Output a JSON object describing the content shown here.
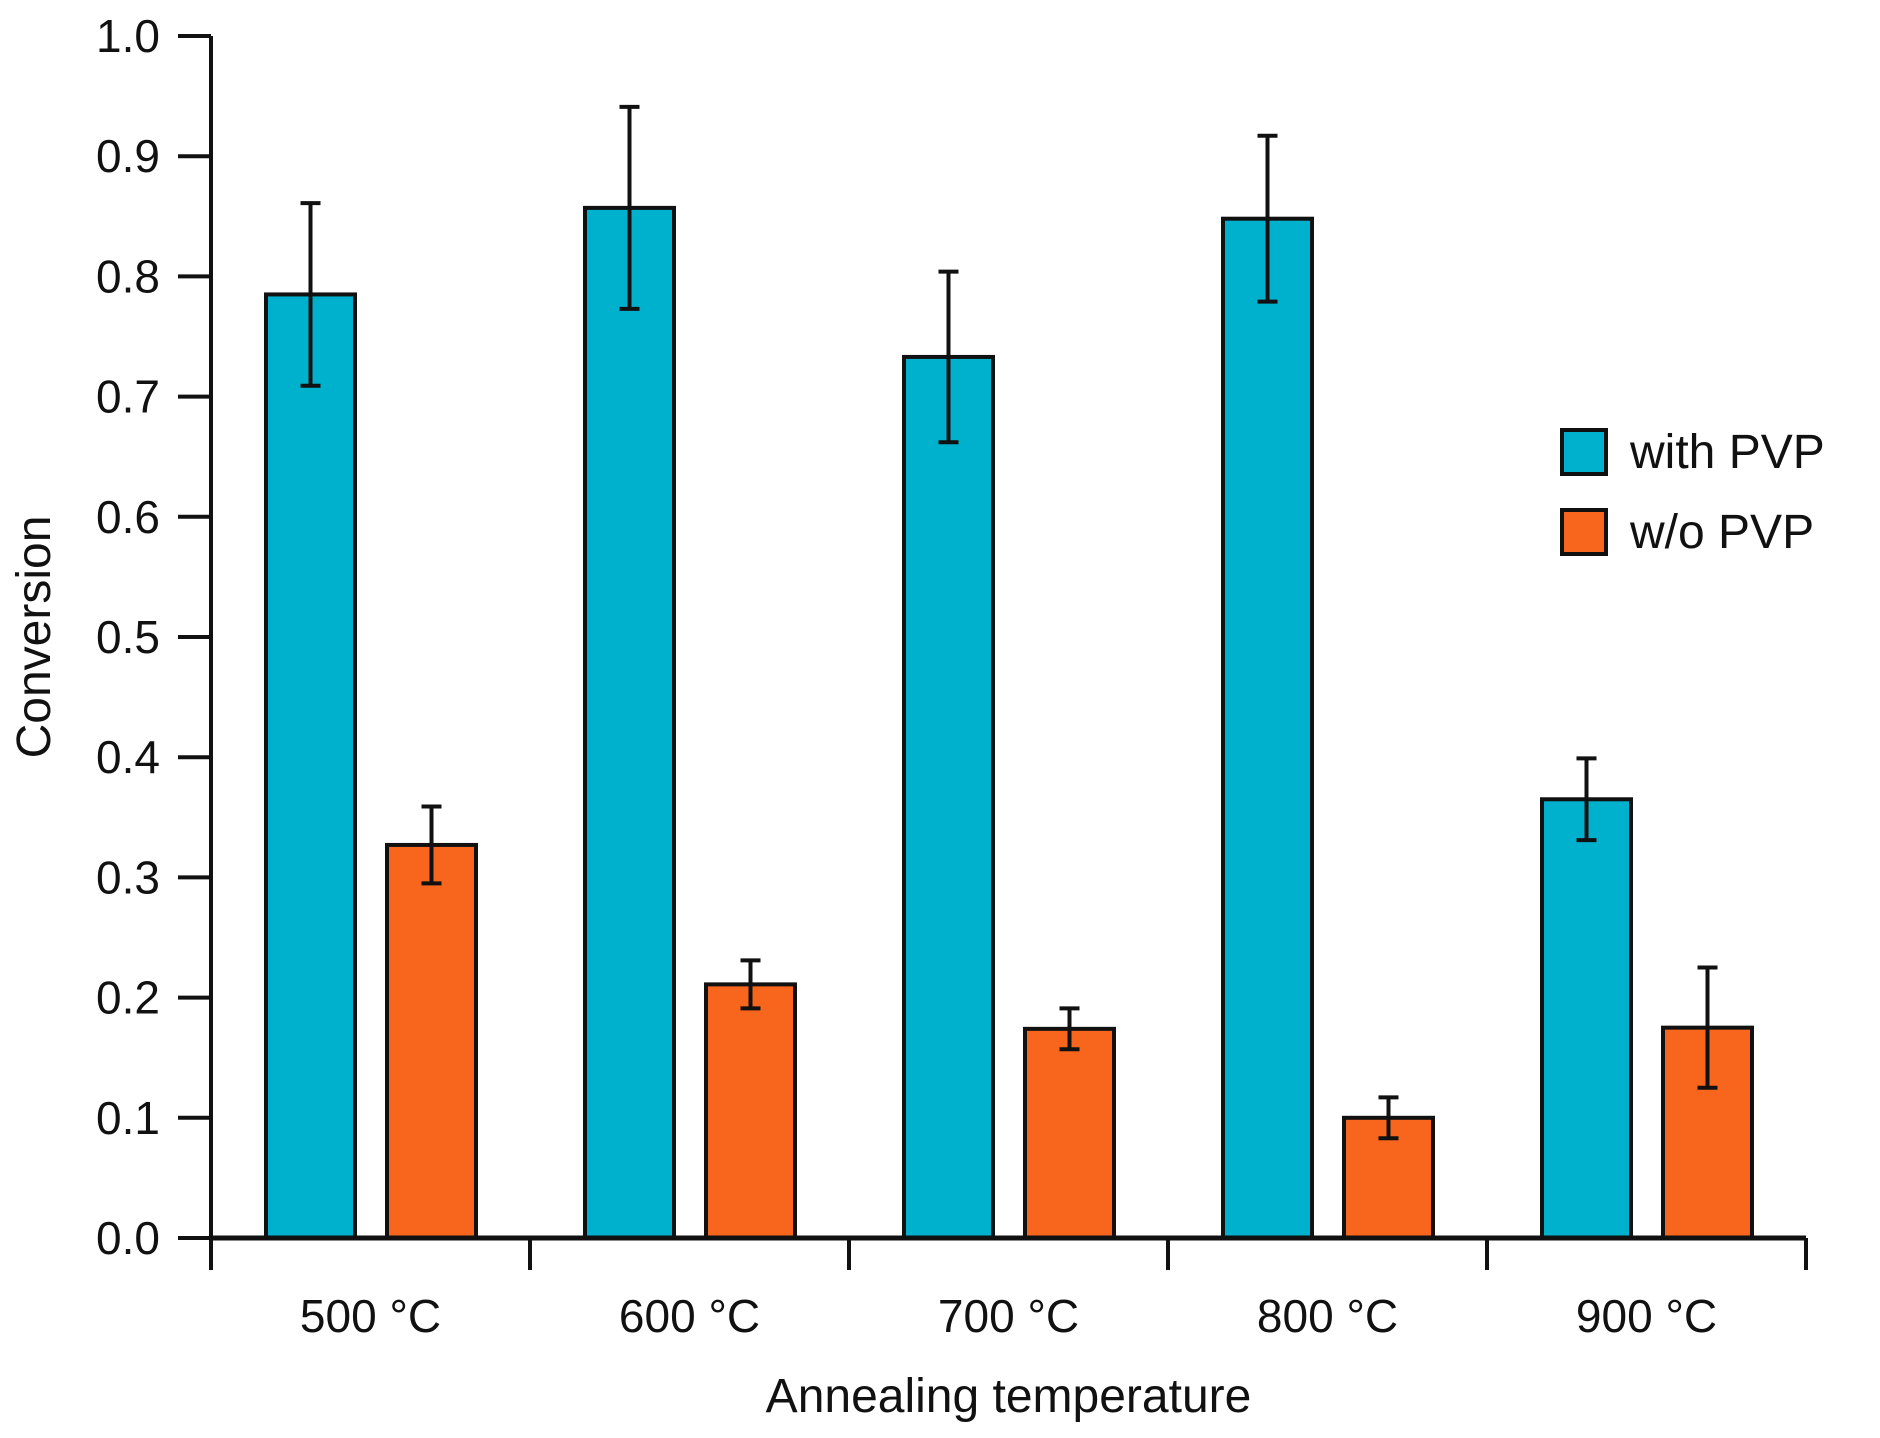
{
  "chart_data": {
    "type": "bar",
    "title": "",
    "xlabel": "Annealing temperature",
    "ylabel": "Conversion",
    "ylim": [
      0.0,
      1.0
    ],
    "yticks": [
      "0.0",
      "0.1",
      "0.2",
      "0.3",
      "0.4",
      "0.5",
      "0.6",
      "0.7",
      "0.8",
      "0.9",
      "1.0"
    ],
    "categories": [
      "500 °C",
      "600 °C",
      "700 °C",
      "800 °C",
      "900 °C"
    ],
    "series": [
      {
        "name": "with PVP",
        "color": "#00B1CD",
        "values": [
          0.785,
          0.857,
          0.733,
          0.848,
          0.365
        ],
        "error": [
          0.076,
          0.084,
          0.071,
          0.069,
          0.034
        ]
      },
      {
        "name": "w/o PVP",
        "color": "#F7661C",
        "values": [
          0.327,
          0.211,
          0.174,
          0.1,
          0.175
        ],
        "error": [
          0.032,
          0.02,
          0.017,
          0.017,
          0.05
        ]
      }
    ],
    "grid": false,
    "legend": "right"
  }
}
